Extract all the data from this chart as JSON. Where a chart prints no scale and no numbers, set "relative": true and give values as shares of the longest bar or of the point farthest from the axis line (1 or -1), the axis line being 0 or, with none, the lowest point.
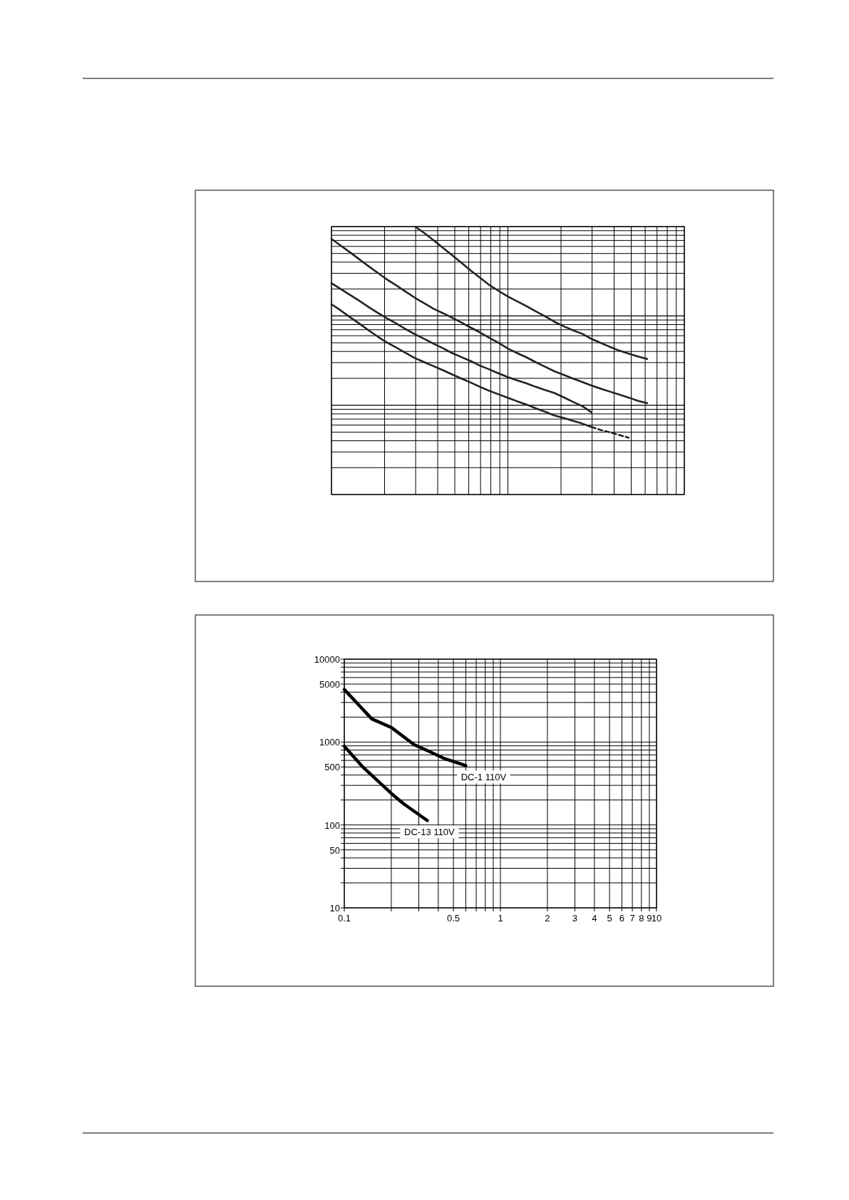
{
  "chart_data": [
    {
      "type": "line",
      "relative": true,
      "grid": true,
      "categories": [
        null,
        null,
        null,
        null,
        null,
        null,
        null,
        null,
        null,
        null,
        null,
        null,
        null,
        null,
        null,
        null,
        null,
        null,
        null,
        null,
        null,
        null,
        null,
        null,
        null,
        null,
        null,
        null,
        null,
        null,
        null,
        null,
        null,
        null,
        null,
        null,
        null,
        null,
        null
      ],
      "series": [
        {
          "color": "#222222",
          "values": [
            null,
            null,
            null,
            null,
            null,
            null,
            null,
            null,
            null,
            1.0,
            0.976,
            0.949,
            0.921,
            0.893,
            0.865,
            0.836,
            0.809,
            0.782,
            0.76,
            0.739,
            0.721,
            0.703,
            0.684,
            0.665,
            0.645,
            0.628,
            0.613,
            0.6,
            0.581,
            0.566,
            0.551,
            0.537,
            0.526,
            0.515,
            0.506,
            null,
            null,
            null,
            null
          ]
        },
        {
          "color": "#222222",
          "values": [
            0.954,
            0.929,
            0.904,
            0.878,
            0.852,
            0.827,
            0.802,
            0.78,
            0.757,
            0.734,
            0.714,
            0.693,
            0.677,
            0.66,
            0.642,
            0.623,
            0.605,
            0.585,
            0.566,
            0.545,
            0.528,
            0.512,
            0.494,
            0.477,
            0.46,
            0.447,
            0.433,
            0.42,
            0.407,
            0.395,
            0.384,
            0.373,
            0.362,
            0.35,
            0.341,
            null,
            null,
            null,
            null
          ]
        },
        {
          "color": "#222222",
          "values": [
            0.789,
            0.767,
            0.745,
            0.723,
            0.7,
            0.678,
            0.657,
            0.638,
            0.617,
            0.598,
            0.581,
            0.563,
            0.546,
            0.528,
            0.513,
            0.498,
            0.481,
            0.467,
            0.452,
            0.438,
            0.426,
            0.415,
            0.402,
            0.39,
            0.379,
            0.363,
            0.346,
            0.33,
            0.307,
            null,
            null,
            null,
            null,
            null,
            null,
            null,
            null,
            null,
            null
          ]
        },
        {
          "color": "#222222",
          "values": [
            0.71,
            0.687,
            0.662,
            0.638,
            0.613,
            0.589,
            0.567,
            0.548,
            0.528,
            0.509,
            0.494,
            0.479,
            0.464,
            0.448,
            0.433,
            0.418,
            0.402,
            0.387,
            0.374,
            0.361,
            0.348,
            0.336,
            0.322,
            0.309,
            0.295,
            0.286,
            0.275,
            0.265,
            0.252,
            null,
            null,
            null,
            null,
            null,
            null,
            null,
            null,
            null,
            null
          ]
        },
        {
          "color": "#222222",
          "line_style": "dashed",
          "values": [
            null,
            null,
            null,
            null,
            null,
            null,
            null,
            null,
            null,
            null,
            null,
            null,
            null,
            null,
            null,
            null,
            null,
            null,
            null,
            null,
            null,
            null,
            null,
            null,
            null,
            null,
            null,
            null,
            0.252,
            0.241,
            0.232,
            0.222,
            0.212,
            null,
            null,
            null,
            null,
            null,
            null
          ]
        }
      ]
    },
    {
      "type": "line",
      "log": "xy",
      "grid": true,
      "xlim": [
        0.1,
        10
      ],
      "ylim": [
        10,
        10000
      ],
      "xticks": [
        0.1,
        {
          "value": 0.2,
          "label": null
        },
        {
          "value": 0.3,
          "label": null
        },
        {
          "value": 0.4,
          "label": null
        },
        0.5,
        {
          "value": 0.6,
          "label": null
        },
        {
          "value": 0.7,
          "label": null
        },
        {
          "value": 0.8,
          "label": null
        },
        {
          "value": 0.9,
          "label": null
        },
        1,
        2,
        3,
        4,
        5,
        6,
        7,
        8,
        9,
        10
      ],
      "yticks": [
        10,
        {
          "value": 20,
          "label": null
        },
        {
          "value": 30,
          "label": null
        },
        {
          "value": 40,
          "label": null
        },
        50,
        {
          "value": 60,
          "label": null
        },
        {
          "value": 70,
          "label": null
        },
        {
          "value": 80,
          "label": null
        },
        {
          "value": 90,
          "label": null
        },
        100,
        {
          "value": 200,
          "label": null
        },
        {
          "value": 300,
          "label": null
        },
        {
          "value": 400,
          "label": null
        },
        500,
        {
          "value": 600,
          "label": null
        },
        {
          "value": 700,
          "label": null
        },
        {
          "value": 800,
          "label": null
        },
        {
          "value": 900,
          "label": null
        },
        1000,
        {
          "value": 2000,
          "label": null
        },
        {
          "value": 3000,
          "label": null
        },
        {
          "value": 4000,
          "label": null
        },
        5000,
        {
          "value": 6000,
          "label": null
        },
        {
          "value": 7000,
          "label": null
        },
        {
          "value": 8000,
          "label": null
        },
        {
          "value": 9000,
          "label": null
        },
        10000
      ],
      "series": [
        {
          "name": "DC-1 110V",
          "color": "#000000",
          "x": [
            0.1,
            0.15,
            0.2,
            0.28,
            0.35,
            0.44,
            0.6
          ],
          "values": [
            4300,
            1900,
            1500,
            930,
            770,
            630,
            520
          ]
        },
        {
          "name": "DC-13 110V",
          "color": "#000000",
          "x": [
            0.1,
            0.13,
            0.2,
            0.24,
            0.34
          ],
          "values": [
            890,
            510,
            240,
            180,
            113
          ]
        }
      ]
    }
  ]
}
